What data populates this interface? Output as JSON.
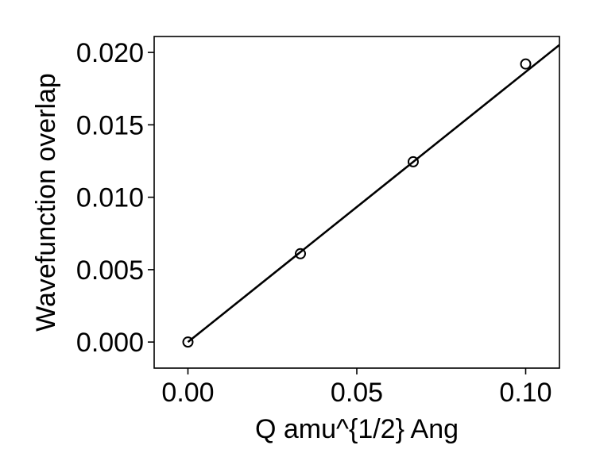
{
  "chart_data": {
    "type": "scatter",
    "title": "",
    "xlabel": "Q amu^{1/2} Ang",
    "ylabel": "Wavefunction overlap",
    "xlim": [
      -0.01,
      0.11
    ],
    "ylim": [
      -0.0018,
      0.0211
    ],
    "grid": false,
    "xticks": [
      0.0,
      0.05,
      0.1
    ],
    "xtick_labels": [
      "0.00",
      "0.05",
      "0.10"
    ],
    "yticks": [
      0.0,
      0.005,
      0.01,
      0.015,
      0.02
    ],
    "ytick_labels": [
      "0.000",
      "0.005",
      "0.010",
      "0.015",
      "0.020"
    ],
    "series": [
      {
        "marker": "open-circle",
        "x": [
          0.0,
          0.0333,
          0.0667,
          0.1
        ],
        "y": [
          0.0,
          0.0061,
          0.01245,
          0.0192
        ]
      },
      {
        "line": "linear-fit",
        "x": [
          0.0,
          0.11
        ],
        "y": [
          0.0,
          0.02052
        ]
      }
    ],
    "colors": {
      "points": "#000000",
      "line": "#000000",
      "axes": "#000000"
    }
  }
}
